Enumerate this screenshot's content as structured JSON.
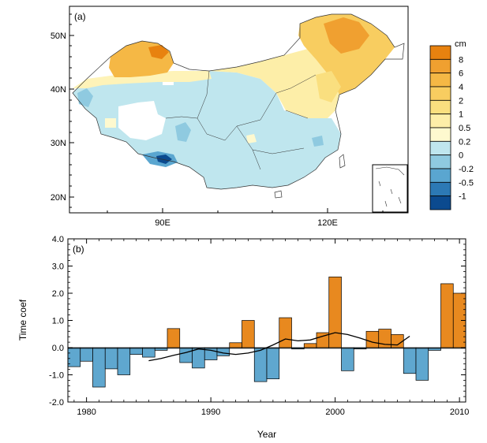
{
  "map_panel": {
    "label": "(a)",
    "lat_ticks": [
      "50N",
      "40N",
      "30N",
      "20N"
    ],
    "lon_ticks": [
      "90E",
      "120E"
    ],
    "colorbar": {
      "unit": "cm",
      "labels": [
        "8",
        "6",
        "4",
        "2",
        "1",
        "0.5",
        "0.2",
        "0",
        "-0.2",
        "-0.5",
        "-1"
      ],
      "colors": [
        "#e8820f",
        "#f0a030",
        "#f5b845",
        "#f8cd60",
        "#fadf7f",
        "#fdeea8",
        "#fef9cf",
        "#bfe6ee",
        "#8fcae0",
        "#5aa6d0",
        "#2c79b5",
        "#0b4a8f"
      ]
    }
  },
  "bar_panel": {
    "label": "(b)"
  },
  "chart_data": {
    "type": "bar",
    "xlabel": "Year",
    "ylabel": "Time coef",
    "xlim": [
      1978.5,
      2010.5
    ],
    "ylim": [
      -2.0,
      4.0
    ],
    "x_ticks": [
      1980,
      1990,
      2000,
      2010
    ],
    "y_ticks": [
      "-2.0",
      "-1.0",
      "0.0",
      "1.0",
      "2.0",
      "3.0",
      "4.0"
    ],
    "positive_color": "#e8891f",
    "negative_color": "#5fa7cf",
    "categories": [
      1979,
      1980,
      1981,
      1982,
      1983,
      1984,
      1985,
      1986,
      1987,
      1988,
      1989,
      1990,
      1991,
      1992,
      1993,
      1994,
      1995,
      1996,
      1997,
      1998,
      1999,
      2000,
      2001,
      2002,
      2003,
      2004,
      2005,
      2006,
      2007,
      2008,
      2009,
      2010
    ],
    "values": [
      -0.7,
      -0.5,
      -1.45,
      -0.78,
      -1.0,
      -0.25,
      -0.35,
      -0.1,
      0.7,
      -0.55,
      -0.75,
      -0.45,
      -0.3,
      0.18,
      1.0,
      -1.25,
      -1.15,
      1.1,
      -0.05,
      0.15,
      0.55,
      2.6,
      -0.85,
      -0.05,
      0.6,
      0.68,
      0.48,
      -0.95,
      -1.2,
      -0.1,
      2.35,
      2.0
    ],
    "smoothed": {
      "x": [
        1985,
        1986,
        1987,
        1988,
        1989,
        1990,
        1991,
        1992,
        1993,
        1994,
        1995,
        1996,
        1997,
        1998,
        1999,
        2000,
        2001,
        2002,
        2003,
        2004,
        2005,
        2006
      ],
      "values": [
        -0.48,
        -0.4,
        -0.28,
        -0.18,
        -0.05,
        -0.1,
        -0.2,
        -0.25,
        -0.2,
        -0.1,
        0.1,
        0.32,
        0.25,
        0.28,
        0.42,
        0.55,
        0.48,
        0.35,
        0.2,
        0.12,
        0.1,
        0.42
      ]
    }
  }
}
